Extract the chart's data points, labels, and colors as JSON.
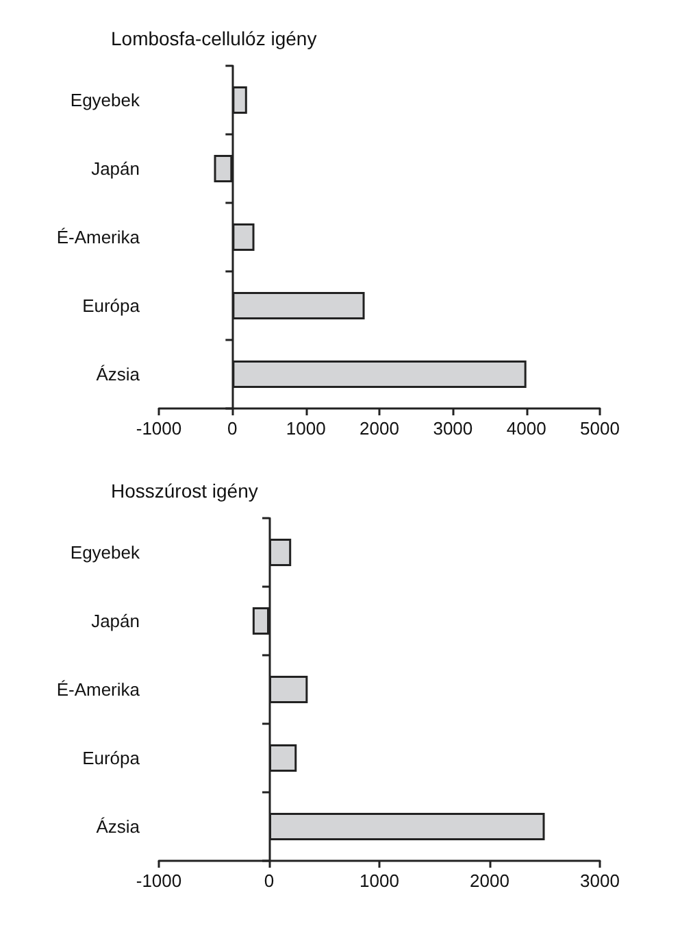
{
  "chart_data": [
    {
      "type": "bar",
      "orientation": "horizontal",
      "title": "Lombosfa-cellulóz igény",
      "categories": [
        "Egyebek",
        "Japán",
        "É-Amerika",
        "Európa",
        "Ázsia"
      ],
      "series": [
        {
          "color": "#d4d5d7",
          "values": [
            200,
            -250,
            300,
            1800,
            4000
          ]
        }
      ],
      "xlim": [
        -1000,
        5000
      ],
      "xticks": [
        -1000,
        0,
        1000,
        2000,
        3000,
        4000,
        5000
      ]
    },
    {
      "type": "bar",
      "orientation": "horizontal",
      "title": "Hosszúrost igény",
      "categories": [
        "Egyebek",
        "Japán",
        "É-Amerika",
        "Európa",
        "Ázsia"
      ],
      "series": [
        {
          "color": "#d4d5d7",
          "values": [
            200,
            -150,
            350,
            250,
            2500
          ]
        }
      ],
      "xlim": [
        -1000,
        3000
      ],
      "xticks": [
        -1000,
        0,
        1000,
        2000,
        3000
      ]
    }
  ]
}
